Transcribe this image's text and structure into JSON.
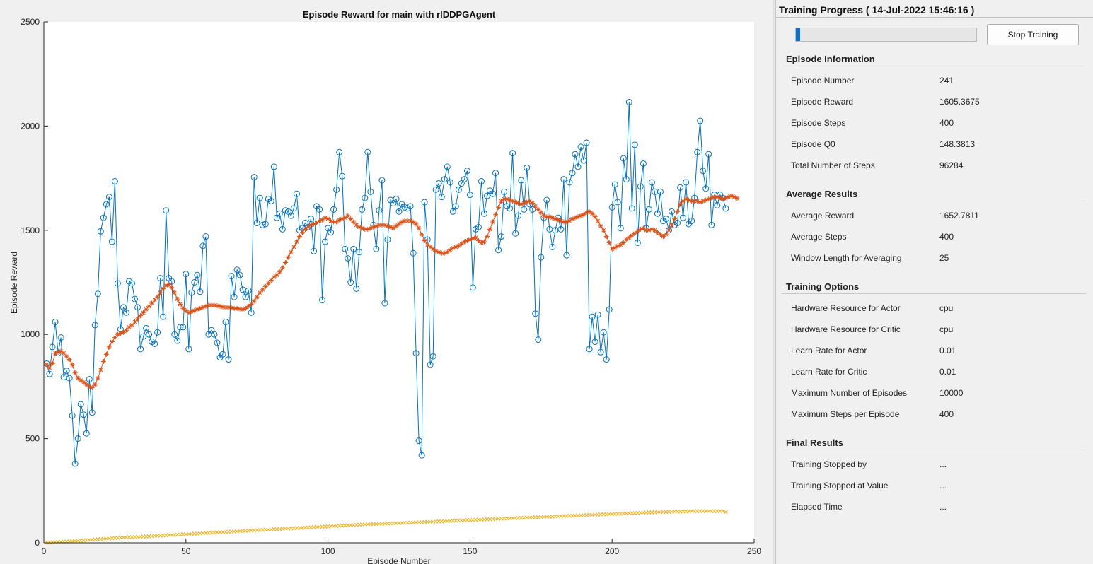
{
  "chart_data": {
    "type": "line",
    "title": "Episode Reward for main with rlDDPGAgent",
    "xlabel": "Episode Number",
    "ylabel": "Episode Reward",
    "xlim": [
      0,
      250
    ],
    "ylim": [
      0,
      2500
    ],
    "xticks": [
      0,
      50,
      100,
      150,
      200,
      250
    ],
    "yticks": [
      0,
      500,
      1000,
      1500,
      2000,
      2500
    ],
    "grid": false,
    "series": [
      {
        "color": "#0072bd",
        "marker": "circle",
        "values": [
          860,
          810,
          940,
          1060,
          910,
          985,
          795,
          825,
          790,
          610,
          380,
          500,
          665,
          615,
          525,
          785,
          625,
          1045,
          1195,
          1495,
          1560,
          1625,
          1660,
          1445,
          1735,
          1245,
          1025,
          1130,
          1105,
          1255,
          1245,
          1170,
          1130,
          930,
          990,
          1030,
          1000,
          965,
          955,
          1010,
          1270,
          1085,
          1595,
          1270,
          1255,
          1000,
          970,
          1035,
          1035,
          1290,
          930,
          1200,
          1250,
          1285,
          1205,
          1425,
          1470,
          1000,
          1020,
          1000,
          960,
          890,
          905,
          1060,
          880,
          1280,
          1180,
          1310,
          1285,
          1215,
          1180,
          1210,
          1105,
          1755,
          1535,
          1655,
          1525,
          1530,
          1650,
          1640,
          1805,
          1560,
          1580,
          1505,
          1595,
          1590,
          1570,
          1605,
          1675,
          1500,
          1510,
          1535,
          1515,
          1555,
          1400,
          1615,
          1600,
          1165,
          1445,
          1510,
          1490,
          1600,
          1695,
          1875,
          1760,
          1410,
          1365,
          1250,
          1410,
          1220,
          1395,
          1600,
          1655,
          1875,
          1685,
          1525,
          1410,
          1595,
          1740,
          1150,
          1455,
          1645,
          1630,
          1650,
          1590,
          1625,
          1610,
          1605,
          1615,
          1390,
          910,
          490,
          420,
          1635,
          1455,
          855,
          895,
          1695,
          1725,
          1660,
          1745,
          1805,
          1730,
          1590,
          1615,
          1695,
          1725,
          1745,
          1785,
          1670,
          1225,
          1505,
          1515,
          1735,
          1580,
          1665,
          1690,
          1675,
          1775,
          1405,
          1470,
          1685,
          1615,
          1605,
          1870,
          1485,
          1570,
          1740,
          1600,
          1800,
          1625,
          1600,
          1100,
          975,
          1370,
          1560,
          1645,
          1505,
          1420,
          1500,
          1560,
          1505,
          1745,
          1380,
          1730,
          1775,
          1865,
          1805,
          1900,
          1835,
          1920,
          930,
          1085,
          965,
          1095,
          915,
          1010,
          880,
          1120,
          1610,
          1720,
          1635,
          1510,
          1845,
          1745,
          2115,
          1605,
          1910,
          1440,
          1710,
          1820,
          1510,
          1600,
          1730,
          1685,
          1580,
          1685,
          1545,
          1555,
          1500,
          1590,
          1525,
          1535,
          1705,
          1560,
          1730,
          1530,
          1545,
          1655,
          1875,
          2025,
          1785,
          1700,
          1865,
          1525,
          1670,
          1620,
          1670,
          1655,
          1605
        ]
      },
      {
        "color": "#d95319",
        "marker": "asterisk",
        "values": [
          855,
          840,
          860,
          910,
          915,
          920,
          910,
          895,
          880,
          855,
          815,
          790,
          780,
          770,
          760,
          750,
          745,
          760,
          790,
          830,
          870,
          905,
          940,
          965,
          985,
          1000,
          1005,
          1010,
          1020,
          1035,
          1045,
          1060,
          1075,
          1090,
          1105,
          1120,
          1135,
          1150,
          1165,
          1180,
          1200,
          1220,
          1235,
          1240,
          1225,
          1200,
          1170,
          1145,
          1125,
          1115,
          1105,
          1110,
          1115,
          1120,
          1125,
          1130,
          1135,
          1140,
          1140,
          1140,
          1138,
          1135,
          1132,
          1130,
          1130,
          1128,
          1125,
          1125,
          1122,
          1120,
          1125,
          1135,
          1145,
          1160,
          1180,
          1200,
          1215,
          1230,
          1245,
          1260,
          1275,
          1285,
          1300,
          1320,
          1345,
          1370,
          1395,
          1420,
          1445,
          1470,
          1490,
          1505,
          1515,
          1525,
          1530,
          1535,
          1545,
          1550,
          1560,
          1555,
          1545,
          1540,
          1540,
          1550,
          1555,
          1560,
          1570,
          1555,
          1540,
          1525,
          1515,
          1510,
          1505,
          1505,
          1510,
          1515,
          1520,
          1525,
          1525,
          1525,
          1520,
          1515,
          1510,
          1520,
          1530,
          1540,
          1545,
          1545,
          1545,
          1540,
          1530,
          1510,
          1480,
          1450,
          1430,
          1420,
          1410,
          1400,
          1395,
          1390,
          1390,
          1395,
          1405,
          1415,
          1420,
          1425,
          1435,
          1445,
          1450,
          1455,
          1460,
          1465,
          1450,
          1440,
          1445,
          1470,
          1505,
          1540,
          1575,
          1610,
          1640,
          1650,
          1650,
          1645,
          1640,
          1635,
          1630,
          1625,
          1630,
          1635,
          1640,
          1630,
          1615,
          1600,
          1585,
          1570,
          1565,
          1565,
          1560,
          1555,
          1550,
          1545,
          1540,
          1540,
          1545,
          1555,
          1560,
          1565,
          1570,
          1575,
          1585,
          1590,
          1580,
          1565,
          1545,
          1520,
          1500,
          1470,
          1440,
          1410,
          1415,
          1425,
          1430,
          1440,
          1455,
          1465,
          1475,
          1485,
          1495,
          1505,
          1510,
          1500,
          1500,
          1505,
          1500,
          1490,
          1480,
          1470,
          1480,
          1500,
          1525,
          1555,
          1590,
          1625,
          1640,
          1650,
          1645,
          1640,
          1640,
          1640,
          1635,
          1640,
          1645,
          1650,
          1655,
          1660,
          1660,
          1655,
          1650,
          1655,
          1660,
          1665,
          1660,
          1653
        ]
      },
      {
        "color": "#edb120",
        "marker": "x",
        "values": [
          2,
          2,
          3,
          4,
          5,
          5,
          6,
          6,
          7,
          8,
          9,
          10,
          11,
          12,
          13,
          14,
          15,
          16,
          17,
          18,
          19,
          20,
          21,
          22,
          23,
          24,
          25,
          26,
          26,
          27,
          27,
          28,
          28,
          29,
          30,
          30,
          31,
          32,
          33,
          34,
          34,
          35,
          36,
          37,
          37,
          38,
          39,
          40,
          41,
          41,
          42,
          43,
          44,
          44,
          45,
          46,
          47,
          48,
          48,
          49,
          50,
          51,
          51,
          52,
          53,
          54,
          54,
          55,
          56,
          57,
          57,
          58,
          59,
          60,
          60,
          61,
          62,
          63,
          63,
          64,
          65,
          65,
          66,
          67,
          68,
          68,
          69,
          70,
          71,
          71,
          72,
          73,
          74,
          74,
          75,
          76,
          77,
          77,
          78,
          79,
          80,
          80,
          81,
          82,
          83,
          83,
          84,
          85,
          85,
          86,
          87,
          88,
          88,
          89,
          89,
          90,
          90,
          91,
          91,
          92,
          92,
          93,
          93,
          94,
          94,
          95,
          96,
          96,
          97,
          97,
          98,
          99,
          99,
          100,
          100,
          101,
          101,
          102,
          103,
          103,
          104,
          104,
          105,
          106,
          106,
          107,
          107,
          108,
          109,
          109,
          110,
          110,
          111,
          111,
          112,
          113,
          113,
          114,
          114,
          115,
          116,
          116,
          117,
          117,
          118,
          119,
          119,
          120,
          120,
          121,
          122,
          122,
          123,
          123,
          124,
          124,
          125,
          125,
          126,
          127,
          127,
          128,
          128,
          129,
          130,
          130,
          131,
          131,
          132,
          133,
          133,
          134,
          134,
          135,
          135,
          136,
          137,
          137,
          138,
          138,
          139,
          139,
          140,
          141,
          141,
          142,
          142,
          143,
          143,
          144,
          145,
          145,
          146,
          146,
          147,
          147,
          148,
          148,
          148,
          149,
          149,
          150,
          150,
          150,
          151,
          151,
          151,
          152,
          152,
          152,
          152,
          152,
          152,
          152,
          152,
          152,
          152,
          152,
          152,
          148
        ]
      }
    ]
  },
  "panel": {
    "title": "Training Progress ( 14-Jul-2022 15:46:16 )",
    "progress_fraction": 0.024,
    "stop_button_label": "Stop Training",
    "sections": [
      {
        "title": "Episode Information",
        "rows": [
          {
            "label": "Episode Number",
            "value": "241"
          },
          {
            "label": "Episode Reward",
            "value": "1605.3675"
          },
          {
            "label": "Episode Steps",
            "value": "400"
          },
          {
            "label": "Episode Q0",
            "value": "148.3813"
          },
          {
            "label": "Total Number of Steps",
            "value": "96284"
          }
        ]
      },
      {
        "title": "Average Results",
        "rows": [
          {
            "label": "Average Reward",
            "value": "1652.7811"
          },
          {
            "label": "Average Steps",
            "value": "400"
          },
          {
            "label": "Window Length for Averaging",
            "value": "25"
          }
        ]
      },
      {
        "title": "Training Options",
        "rows": [
          {
            "label": "Hardware Resource for Actor",
            "value": "cpu"
          },
          {
            "label": "Hardware Resource for Critic",
            "value": "cpu"
          },
          {
            "label": "Learn Rate for Actor",
            "value": "0.01"
          },
          {
            "label": "Learn Rate for Critic",
            "value": "0.01"
          },
          {
            "label": "Maximum Number of Episodes",
            "value": "10000"
          },
          {
            "label": "Maximum Steps per Episode",
            "value": "400"
          }
        ]
      },
      {
        "title": "Final Results",
        "rows": [
          {
            "label": "Training Stopped by",
            "value": "..."
          },
          {
            "label": "Training Stopped at Value",
            "value": "..."
          },
          {
            "label": "Elapsed Time",
            "value": "..."
          }
        ]
      }
    ]
  }
}
